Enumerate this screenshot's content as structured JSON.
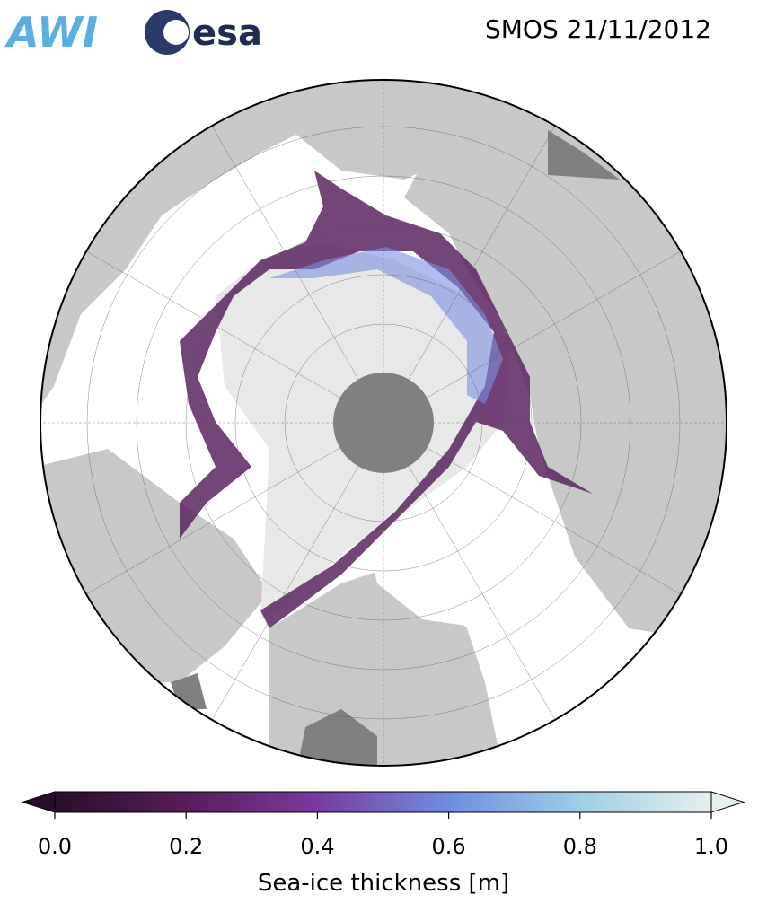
{
  "header": {
    "logos": [
      "AWI",
      "esa"
    ],
    "title": "SMOS 21/11/2012"
  },
  "colorbar": {
    "label": "Sea-ice thickness [m]",
    "lim": [
      0,
      1
    ],
    "ticks": [
      {
        "value": 0,
        "label": "0.0"
      },
      {
        "value": 0.2,
        "label": "0.2"
      },
      {
        "value": 0.4,
        "label": "0.4"
      },
      {
        "value": 0.6,
        "label": "0.6"
      },
      {
        "value": 0.8,
        "label": "0.8"
      },
      {
        "value": 1,
        "label": "1.0"
      }
    ],
    "colors": [
      "#2a0d2a",
      "#571d5b",
      "#7a3aa0",
      "#6f8de0",
      "#9ccfe6",
      "#e6eeee"
    ]
  }
}
